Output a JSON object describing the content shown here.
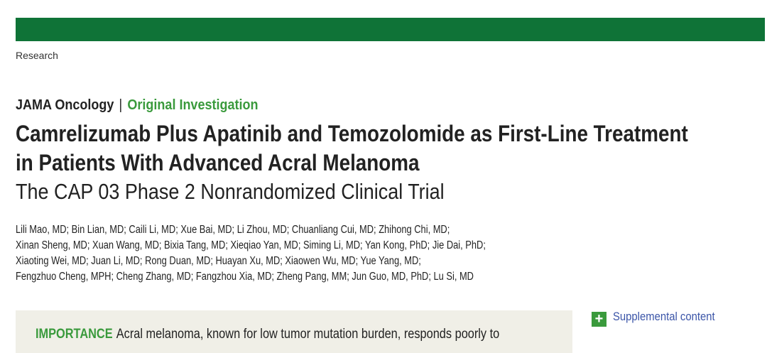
{
  "header": {
    "section": "Research"
  },
  "article": {
    "journal": "JAMA Oncology",
    "separator": "|",
    "article_type": "Original Investigation",
    "title_lines": [
      "Camrelizumab Plus Apatinib and Temozolomide as First-Line Treatment",
      "in Patients With Advanced Acral Melanoma"
    ],
    "subtitle": "The CAP 03 Phase 2 Nonrandomized Clinical Trial",
    "author_lines": [
      "Lili Mao, MD; Bin Lian, MD; Caili Li, MD; Xue Bai, MD; Li Zhou, MD; Chuanliang Cui, MD; Zhihong Chi, MD;",
      "Xinan Sheng, MD; Xuan Wang, MD; Bixia Tang, MD; Xieqiao Yan, MD; Siming Li, MD; Yan Kong, PhD; Jie Dai, PhD;",
      "Xiaoting Wei, MD; Juan Li, MD; Rong Duan, MD; Huayan Xu, MD; Xiaowen Wu, MD; Yue Yang, MD;",
      "Fengzhuo Cheng, MPH; Cheng Zhang, MD; Fangzhou Xia, MD; Zheng Pang, MM; Jun Guo, MD, PhD; Lu Si, MD"
    ],
    "abstract": {
      "importance_label": "IMPORTANCE",
      "importance_text": "Acral melanoma, known for low tumor mutation burden, responds poorly to"
    }
  },
  "sidebar": {
    "supplemental_label": "Supplemental content",
    "supplemental_icon": "plus-icon"
  },
  "colors": {
    "brand_bar": "#0f7337",
    "accent_green": "#3a9a3c",
    "link_blue": "#3b55a8",
    "abstract_bg": "#f0efe7"
  }
}
